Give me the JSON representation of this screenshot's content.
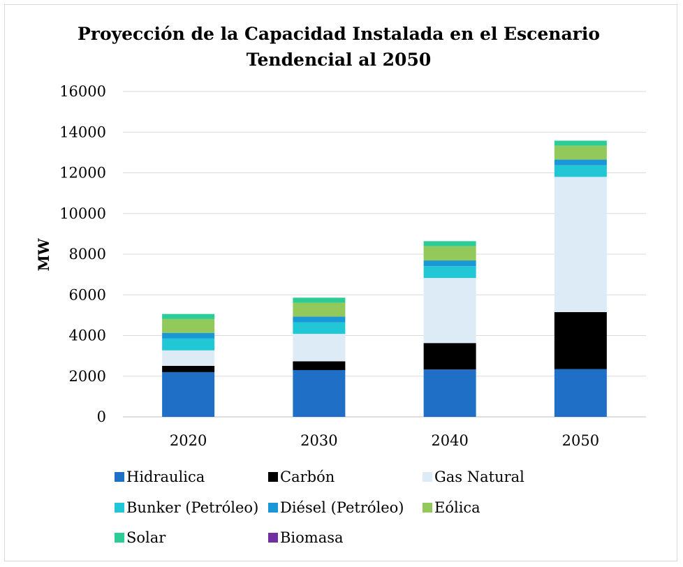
{
  "chart_data": {
    "type": "bar",
    "stacked": true,
    "title_lines": [
      "Proyección de la Capacidad Instalada en el Escenario",
      "Tendencial al 2050"
    ],
    "xlabel": "",
    "ylabel": "MW",
    "ylim": [
      0,
      16000
    ],
    "yticks": [
      0,
      2000,
      4000,
      6000,
      8000,
      10000,
      12000,
      14000,
      16000
    ],
    "grid": true,
    "legend_position": "bottom",
    "categories": [
      "2020",
      "2030",
      "2040",
      "2050"
    ],
    "series": [
      {
        "name": "Hidraulica",
        "color": "#1f6fc6",
        "values": [
          2200,
          2300,
          2330,
          2350
        ]
      },
      {
        "name": "Carbón",
        "color": "#000000",
        "values": [
          310,
          430,
          1300,
          2800
        ]
      },
      {
        "name": "Gas Natural",
        "color": "#ddebf7",
        "values": [
          760,
          1350,
          3200,
          6650
        ]
      },
      {
        "name": "Bunker (Petróleo)",
        "color": "#22c7d6",
        "values": [
          580,
          570,
          580,
          570
        ]
      },
      {
        "name": "Diésel (Petróleo)",
        "color": "#1a97d6",
        "values": [
          280,
          280,
          280,
          280
        ]
      },
      {
        "name": "Eólica",
        "color": "#92c95a",
        "values": [
          680,
          680,
          700,
          680
        ]
      },
      {
        "name": "Solar",
        "color": "#2dcc96",
        "values": [
          250,
          250,
          250,
          250
        ]
      },
      {
        "name": "Biomasa",
        "color": "#7030a0",
        "values": [
          0,
          0,
          0,
          0
        ]
      }
    ]
  }
}
